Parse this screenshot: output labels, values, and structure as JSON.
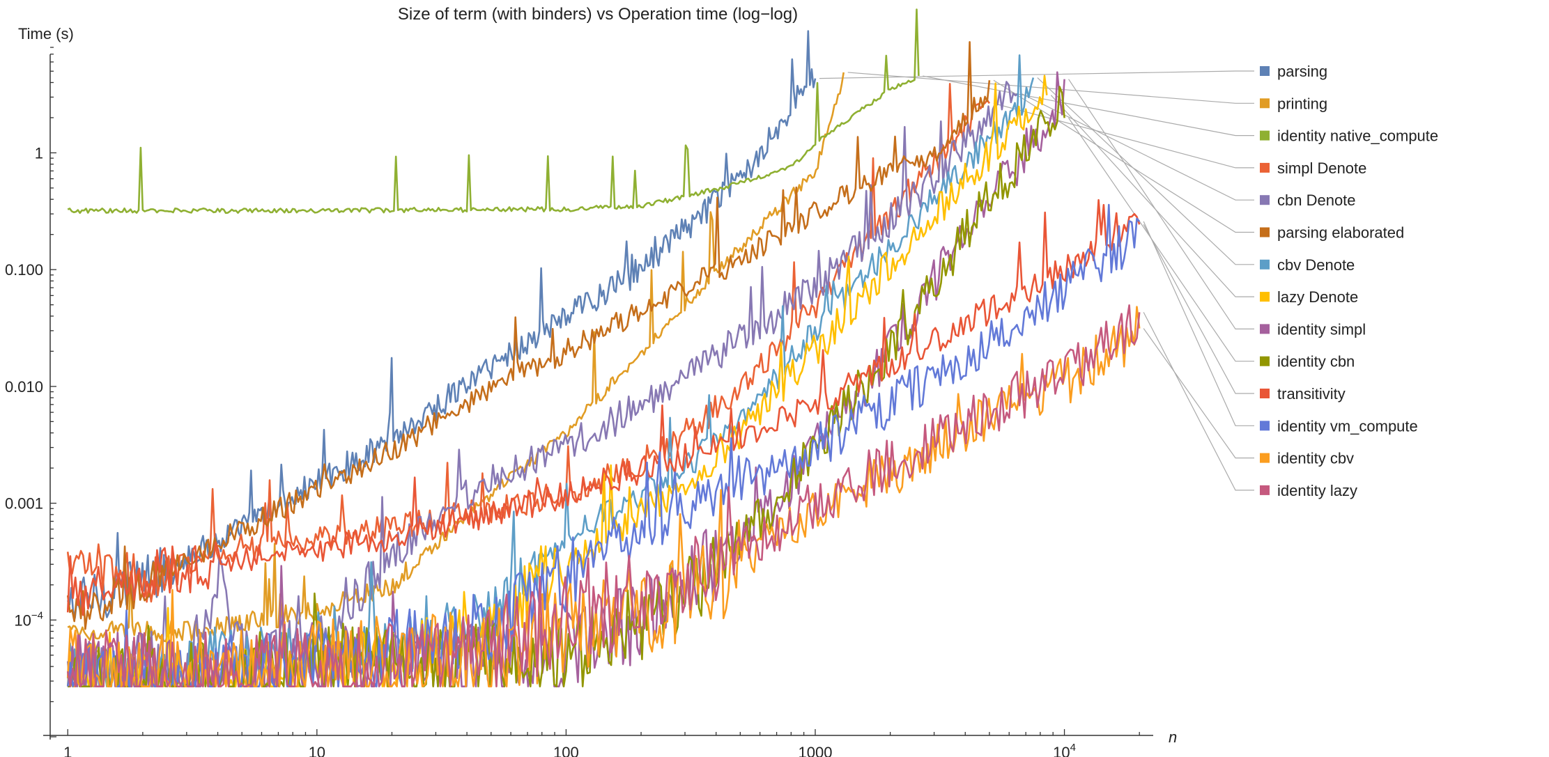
{
  "chart_data": {
    "type": "line",
    "title": "Size of term (with binders) vs Operation time (log−log)",
    "xlabel": "n",
    "ylabel": "Time (s)",
    "x_scale": "log",
    "y_scale": "log",
    "xlim": [
      0.85,
      22000
    ],
    "ylim": [
      1e-05,
      8
    ],
    "x_ticks": [
      {
        "value": 1,
        "label": "1"
      },
      {
        "value": 10,
        "label": "10"
      },
      {
        "value": 100,
        "label": "100"
      },
      {
        "value": 1000,
        "label": "1000"
      },
      {
        "value": 10000,
        "label": "10",
        "sup": "4"
      }
    ],
    "y_ticks": [
      {
        "value": 0.0001,
        "label": "10",
        "sup": "−4"
      },
      {
        "value": 0.001,
        "label": "0.001"
      },
      {
        "value": 0.01,
        "label": "0.010"
      },
      {
        "value": 0.1,
        "label": "0.100"
      },
      {
        "value": 1,
        "label": "1"
      }
    ],
    "grid": false,
    "legend_position": "right",
    "series": [
      {
        "name": "parsing",
        "color": "#5E81B5",
        "noise": 0.12,
        "points": [
          [
            1,
            0.00013
          ],
          [
            2,
            0.00022
          ],
          [
            5,
            0.0006
          ],
          [
            10,
            0.0015
          ],
          [
            20,
            0.0035
          ],
          [
            50,
            0.015
          ],
          [
            100,
            0.04
          ],
          [
            200,
            0.1
          ],
          [
            500,
            0.6
          ],
          [
            1000,
            4.8
          ]
        ]
      },
      {
        "name": "printing",
        "color": "#E19C24",
        "noise": 0.05,
        "points": [
          [
            1,
            8e-05
          ],
          [
            3,
            8e-05
          ],
          [
            10,
            0.00012
          ],
          [
            20,
            0.0002
          ],
          [
            50,
            0.0012
          ],
          [
            100,
            0.004
          ],
          [
            300,
            0.05
          ],
          [
            1000,
            0.7
          ],
          [
            1300,
            4.5
          ]
        ]
      },
      {
        "name": "identity native_compute",
        "color": "#8FB032",
        "noise": 0.02,
        "points": [
          [
            1,
            0.32
          ],
          [
            10,
            0.32
          ],
          [
            100,
            0.33
          ],
          [
            200,
            0.35
          ],
          [
            300,
            0.42
          ],
          [
            500,
            0.55
          ],
          [
            800,
            0.75
          ],
          [
            1000,
            1.2
          ],
          [
            2000,
            3.5
          ],
          [
            2600,
            4.5
          ]
        ]
      },
      {
        "name": "simpl Denote",
        "color": "#EB6235",
        "noise": 0.12,
        "points": [
          [
            1,
            0.00032
          ],
          [
            2,
            0.00022
          ],
          [
            4,
            0.0004
          ],
          [
            10,
            0.0005
          ],
          [
            20,
            0.0006
          ],
          [
            50,
            0.0009
          ],
          [
            100,
            0.0012
          ],
          [
            200,
            0.0022
          ],
          [
            500,
            0.009
          ],
          [
            1000,
            0.05
          ],
          [
            2000,
            0.3
          ],
          [
            5000,
            2.8
          ]
        ]
      },
      {
        "name": "cbn Denote",
        "color": "#8778B3",
        "noise": 0.15,
        "points": [
          [
            1,
            2.7e-05
          ],
          [
            2,
            5e-05
          ],
          [
            3,
            3e-05
          ],
          [
            4,
            0.00025
          ],
          [
            5,
            5e-05
          ],
          [
            10,
            7e-05
          ],
          [
            15,
            0.0002
          ],
          [
            30,
            0.0008
          ],
          [
            60,
            0.002
          ],
          [
            100,
            0.003
          ],
          [
            300,
            0.012
          ],
          [
            1000,
            0.07
          ],
          [
            3000,
            0.6
          ],
          [
            6500,
            4.0
          ]
        ]
      },
      {
        "name": "parsing elaborated",
        "color": "#C56E1A",
        "noise": 0.1,
        "points": [
          [
            1,
            0.00011
          ],
          [
            2,
            0.0002
          ],
          [
            5,
            0.0006
          ],
          [
            10,
            0.0013
          ],
          [
            20,
            0.0028
          ],
          [
            50,
            0.01
          ],
          [
            100,
            0.02
          ],
          [
            200,
            0.045
          ],
          [
            500,
            0.12
          ],
          [
            1000,
            0.32
          ],
          [
            2000,
            0.7
          ],
          [
            3000,
            1.0
          ],
          [
            5000,
            3.5
          ]
        ]
      },
      {
        "name": "cbv Denote",
        "color": "#5D9EC7",
        "noise": 0.12,
        "points": [
          [
            1,
            5e-05
          ],
          [
            2,
            2.7e-05
          ],
          [
            4,
            6e-05
          ],
          [
            10,
            5e-05
          ],
          [
            20,
            6e-05
          ],
          [
            50,
            0.00012
          ],
          [
            100,
            0.0005
          ],
          [
            300,
            0.002
          ],
          [
            500,
            0.005
          ],
          [
            1000,
            0.03
          ],
          [
            3000,
            0.4
          ],
          [
            7500,
            3.5
          ]
        ]
      },
      {
        "name": "lazy Denote",
        "color": "#FFBF00",
        "noise": 0.15,
        "points": [
          [
            1,
            3e-05
          ],
          [
            3,
            3e-05
          ],
          [
            10,
            4e-05
          ],
          [
            20,
            5e-05
          ],
          [
            50,
            0.0001
          ],
          [
            100,
            0.0003
          ],
          [
            300,
            0.0015
          ],
          [
            500,
            0.004
          ],
          [
            1000,
            0.02
          ],
          [
            3000,
            0.3
          ],
          [
            8500,
            3.5
          ]
        ]
      },
      {
        "name": "identity simpl",
        "color": "#A5609D",
        "noise": 0.2,
        "points": [
          [
            1,
            3.5e-05
          ],
          [
            2,
            3.5e-05
          ],
          [
            3,
            2.8e-05
          ],
          [
            10,
            4e-05
          ],
          [
            30,
            4e-05
          ],
          [
            100,
            5e-05
          ],
          [
            200,
            0.0001
          ],
          [
            400,
            0.0003
          ],
          [
            700,
            0.001
          ],
          [
            1000,
            0.003
          ],
          [
            2000,
            0.02
          ],
          [
            4000,
            0.2
          ],
          [
            10000,
            3.0
          ]
        ]
      },
      {
        "name": "identity cbn",
        "color": "#929600",
        "noise": 0.2,
        "points": [
          [
            1,
            2.7e-05
          ],
          [
            3,
            3e-05
          ],
          [
            10,
            4e-05
          ],
          [
            30,
            4e-05
          ],
          [
            100,
            5e-05
          ],
          [
            200,
            0.0001
          ],
          [
            400,
            0.0003
          ],
          [
            700,
            0.001
          ],
          [
            1000,
            0.003
          ],
          [
            2000,
            0.02
          ],
          [
            4000,
            0.2
          ],
          [
            10000,
            3.0
          ]
        ]
      },
      {
        "name": "transitivity",
        "color": "#E95536",
        "noise": 0.12,
        "points": [
          [
            1,
            0.00014
          ],
          [
            2,
            0.00025
          ],
          [
            4,
            0.0003
          ],
          [
            10,
            0.0004
          ],
          [
            20,
            0.0005
          ],
          [
            50,
            0.0008
          ],
          [
            100,
            0.0012
          ],
          [
            300,
            0.0025
          ],
          [
            1000,
            0.007
          ],
          [
            3000,
            0.025
          ],
          [
            10000,
            0.1
          ],
          [
            20000,
            0.27
          ]
        ]
      },
      {
        "name": "identity vm_compute",
        "color": "#6279D8",
        "noise": 0.2,
        "points": [
          [
            1,
            2.7e-05
          ],
          [
            3,
            3e-05
          ],
          [
            10,
            4e-05
          ],
          [
            50,
            8e-05
          ],
          [
            100,
            0.00025
          ],
          [
            300,
            0.0009
          ],
          [
            1000,
            0.003
          ],
          [
            3000,
            0.012
          ],
          [
            10000,
            0.07
          ],
          [
            20000,
            0.2
          ]
        ]
      },
      {
        "name": "identity cbv",
        "color": "#FB9D1F",
        "noise": 0.22,
        "points": [
          [
            1,
            3.5e-05
          ],
          [
            3,
            3e-05
          ],
          [
            10,
            4e-05
          ],
          [
            50,
            5e-05
          ],
          [
            100,
            8e-05
          ],
          [
            300,
            0.00015
          ],
          [
            1000,
            0.0008
          ],
          [
            3000,
            0.003
          ],
          [
            10000,
            0.011
          ],
          [
            20000,
            0.03
          ]
        ]
      },
      {
        "name": "identity lazy",
        "color": "#C5597E",
        "noise": 0.22,
        "points": [
          [
            1,
            3.5e-05
          ],
          [
            3,
            3e-05
          ],
          [
            10,
            4e-05
          ],
          [
            50,
            5e-05
          ],
          [
            100,
            0.0001
          ],
          [
            300,
            0.0002
          ],
          [
            1000,
            0.001
          ],
          [
            3000,
            0.0035
          ],
          [
            10000,
            0.013
          ],
          [
            20000,
            0.035
          ]
        ]
      }
    ]
  }
}
